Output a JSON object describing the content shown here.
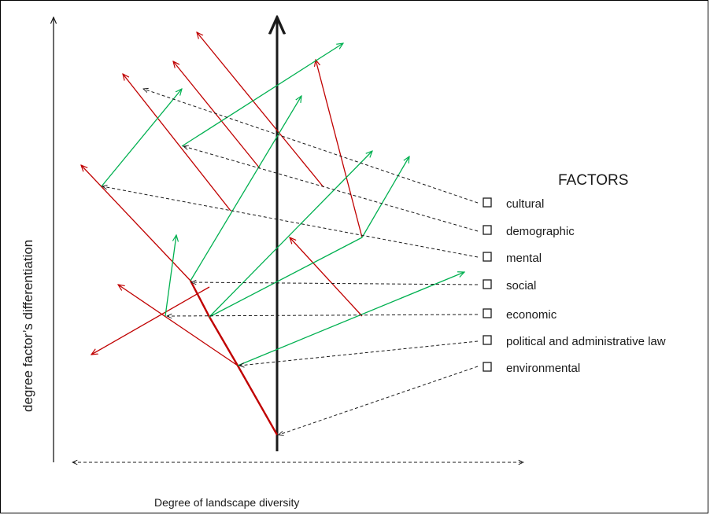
{
  "factors_heading": "FACTORS",
  "factors": [
    "cultural",
    "demographic",
    "mental",
    "social",
    "economic",
    "political and administrative law",
    "environmental"
  ],
  "x_axis_label": "Degree of landscape diversity",
  "y_axis_label": "degree factor’s differentiation",
  "colors": {
    "trunk": "#1a1a1a",
    "red_branch": "#c00000",
    "green_branch": "#00b050",
    "connector": "#1a1a1a",
    "checkbox": "#1a1a1a"
  }
}
